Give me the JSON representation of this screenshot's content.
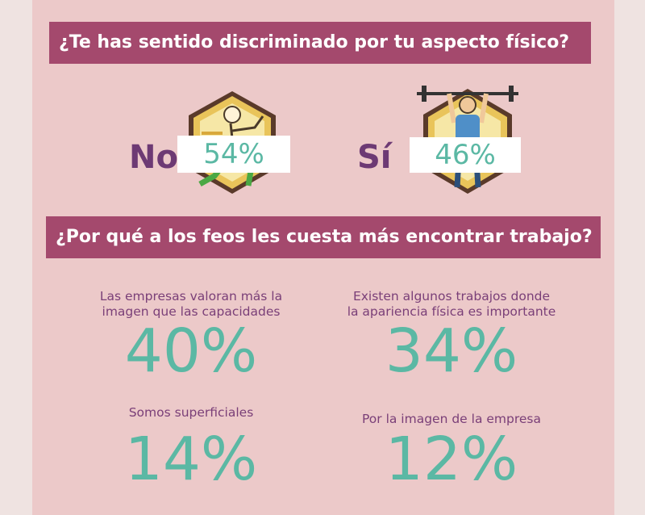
{
  "question1": "¿Te has sentido discriminado por tu aspecto físico?",
  "answers": [
    {
      "label": "No",
      "percent": "54%",
      "icon": "runner-icon"
    },
    {
      "label": "Sí",
      "percent": "46%",
      "icon": "weightlifter-icon"
    }
  ],
  "question2": "¿Por qué a los feos les cuesta más encontrar trabajo?",
  "reasons": [
    {
      "text_line1": "Las empresas valoran más la",
      "text_line2": "imagen que las capacidades",
      "percent": "40%"
    },
    {
      "text_line1": "Existen algunos trabajos donde",
      "text_line2": "la apariencia física es importante",
      "percent": "34%"
    },
    {
      "text_line1": "Somos superficiales",
      "text_line2": "",
      "percent": "14%"
    },
    {
      "text_line1": "Por la imagen de la empresa",
      "text_line2": "",
      "percent": "12%"
    }
  ],
  "colors": {
    "banner": "#a4496d",
    "panel": "#ecc9c9",
    "accent_teal": "#5bb8a4",
    "text_purple": "#6d3a74"
  }
}
